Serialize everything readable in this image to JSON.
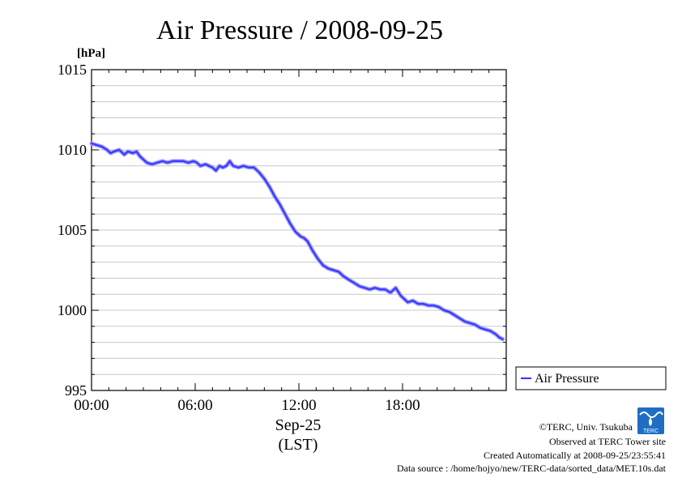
{
  "chart_data": {
    "type": "line",
    "title": "Air Pressure / 2008-09-25",
    "ylabel": "[hPa]",
    "xlabel_date": "Sep-25",
    "xlabel_tz": "(LST)",
    "ylim": [
      995,
      1015
    ],
    "xlim": [
      0,
      24
    ],
    "yticks": [
      995,
      1000,
      1005,
      1010,
      1015
    ],
    "ytick_labels": [
      "995",
      "1000",
      "1005",
      "1010",
      "1015"
    ],
    "xticks": [
      0,
      6,
      12,
      18
    ],
    "xtick_labels": [
      "00:00",
      "06:00",
      "12:00",
      "18:00"
    ],
    "grid": true,
    "legend_position": "right",
    "series": [
      {
        "name": "Air Pressure",
        "color": "#3333ff",
        "x": [
          0.0,
          0.3,
          0.6,
          0.9,
          1.1,
          1.3,
          1.6,
          1.9,
          2.1,
          2.4,
          2.6,
          2.8,
          3.0,
          3.2,
          3.5,
          3.8,
          4.1,
          4.4,
          4.7,
          5.0,
          5.3,
          5.6,
          5.9,
          6.1,
          6.3,
          6.6,
          6.8,
          7.0,
          7.2,
          7.4,
          7.6,
          7.8,
          8.0,
          8.2,
          8.5,
          8.8,
          9.1,
          9.4,
          9.7,
          10.0,
          10.3,
          10.6,
          10.9,
          11.2,
          11.5,
          11.8,
          12.1,
          12.3,
          12.5,
          12.8,
          13.1,
          13.4,
          13.7,
          14.0,
          14.3,
          14.6,
          14.9,
          15.2,
          15.5,
          15.8,
          16.1,
          16.4,
          16.7,
          17.0,
          17.3,
          17.6,
          17.9,
          18.1,
          18.3,
          18.6,
          18.9,
          19.2,
          19.5,
          19.8,
          20.1,
          20.4,
          20.7,
          21.0,
          21.3,
          21.6,
          21.9,
          22.2,
          22.5,
          22.8,
          23.1,
          23.4,
          23.6,
          23.8
        ],
        "values": [
          1010.4,
          1010.3,
          1010.2,
          1010.0,
          1009.8,
          1009.9,
          1010.0,
          1009.7,
          1009.9,
          1009.8,
          1009.9,
          1009.6,
          1009.4,
          1009.2,
          1009.1,
          1009.2,
          1009.3,
          1009.2,
          1009.3,
          1009.3,
          1009.3,
          1009.2,
          1009.3,
          1009.2,
          1009.0,
          1009.1,
          1009.0,
          1008.9,
          1008.7,
          1009.0,
          1008.9,
          1009.0,
          1009.3,
          1009.0,
          1008.9,
          1009.0,
          1008.9,
          1008.9,
          1008.6,
          1008.2,
          1007.7,
          1007.1,
          1006.6,
          1006.0,
          1005.4,
          1004.9,
          1004.6,
          1004.5,
          1004.3,
          1003.7,
          1003.2,
          1002.8,
          1002.6,
          1002.5,
          1002.4,
          1002.1,
          1001.9,
          1001.7,
          1001.5,
          1001.4,
          1001.3,
          1001.4,
          1001.3,
          1001.3,
          1001.1,
          1001.4,
          1000.9,
          1000.7,
          1000.5,
          1000.6,
          1000.4,
          1000.4,
          1000.3,
          1000.3,
          1000.2,
          1000.0,
          999.9,
          999.7,
          999.5,
          999.3,
          999.2,
          999.1,
          998.9,
          998.8,
          998.7,
          998.5,
          998.3,
          998.2
        ]
      }
    ]
  },
  "credits": {
    "copyright": "©TERC, Univ. Tsukuba",
    "observed": "Observed at TERC Tower site",
    "created": "Created Automatically at 2008-09-25/23:55:41",
    "source": "Data source : /home/hojyo/new/TERC-data/sorted_data/MET.10s.dat",
    "logo_text": "TERC"
  }
}
